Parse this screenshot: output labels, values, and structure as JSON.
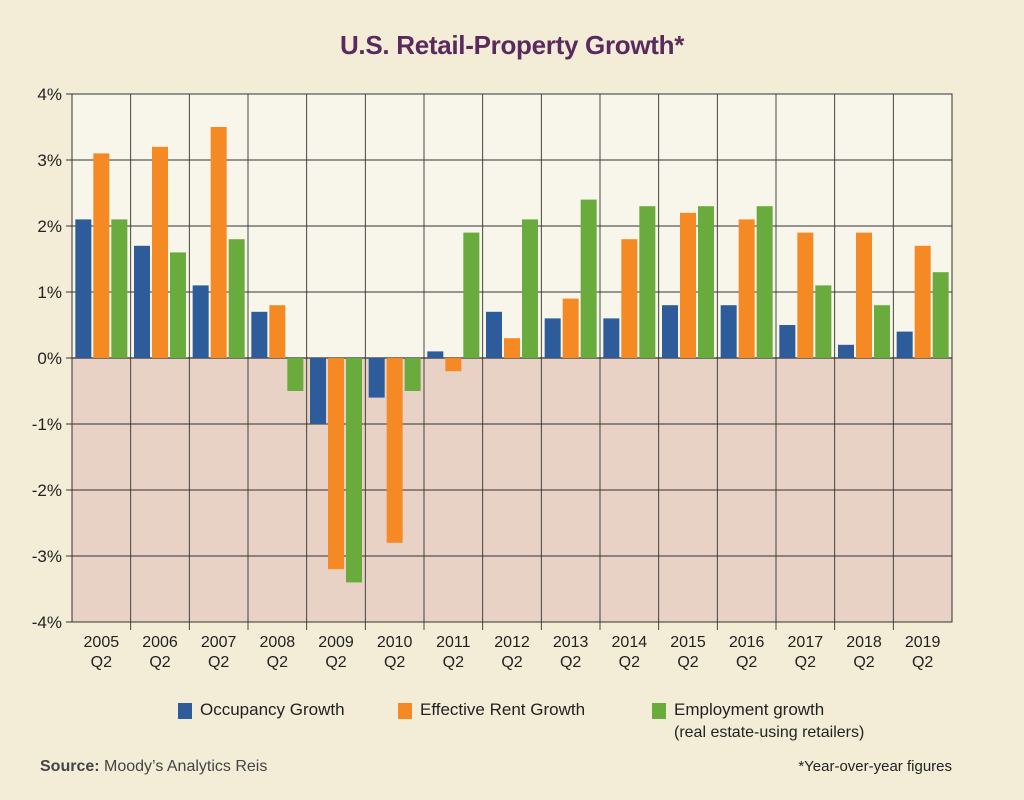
{
  "chart_data": {
    "type": "bar",
    "title": "U.S. Retail-Property Growth*",
    "categories": [
      [
        "2005",
        "Q2"
      ],
      [
        "2006",
        "Q2"
      ],
      [
        "2007",
        "Q2"
      ],
      [
        "2008",
        "Q2"
      ],
      [
        "2009",
        "Q2"
      ],
      [
        "2010",
        "Q2"
      ],
      [
        "2011",
        "Q2"
      ],
      [
        "2012",
        "Q2"
      ],
      [
        "2013",
        "Q2"
      ],
      [
        "2014",
        "Q2"
      ],
      [
        "2015",
        "Q2"
      ],
      [
        "2016",
        "Q2"
      ],
      [
        "2017",
        "Q2"
      ],
      [
        "2018",
        "Q2"
      ],
      [
        "2019",
        "Q2"
      ]
    ],
    "series": [
      {
        "name": "Occupancy Growth",
        "color": "#2e5b9a",
        "values": [
          2.1,
          1.7,
          1.1,
          0.7,
          -1.0,
          -0.6,
          0.1,
          0.7,
          0.6,
          0.6,
          0.8,
          0.8,
          0.5,
          0.2,
          0.4
        ]
      },
      {
        "name": "Effective Rent Growth",
        "color": "#f58a25",
        "values": [
          3.1,
          3.2,
          3.5,
          0.8,
          -3.2,
          -2.8,
          -0.2,
          0.3,
          0.9,
          1.8,
          2.2,
          2.1,
          1.9,
          1.9,
          1.7
        ]
      },
      {
        "name": "Employment growth",
        "name_sub": "(real estate-using retailers)",
        "color": "#6aab3e",
        "values": [
          2.1,
          1.6,
          1.8,
          -0.5,
          -3.4,
          -0.5,
          1.9,
          2.1,
          2.4,
          2.3,
          2.3,
          2.3,
          1.1,
          0.8,
          1.3
        ]
      }
    ],
    "ylim": [
      -4,
      4
    ],
    "yticks": [
      "4%",
      "3%",
      "2%",
      "1%",
      "0%",
      "-1%",
      "-2%",
      "-3%",
      "-4%"
    ],
    "grid": true,
    "positive_bg": "#f8f5ea",
    "negative_bg": "#e8d2c5",
    "legend_position": "bottom"
  },
  "source_label": "Source:",
  "source_text": " Moody’s Analytics Reis",
  "footnote": "*Year-over-year figures"
}
